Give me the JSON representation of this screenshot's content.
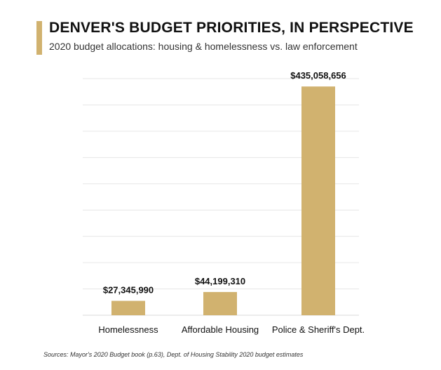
{
  "colors": {
    "accent": "#d1b26f",
    "bar": "#d1b26f",
    "grid": "#e6e6e6"
  },
  "header": {
    "title": "DENVER'S BUDGET PRIORITIES, IN PERSPECTIVE",
    "subtitle": "2020 budget allocations: housing & homelessness vs. law enforcement"
  },
  "footer": {
    "source": "Sources: Mayor's 2020 Budget book (p.63), Dept. of Housing Stability 2020 budget estimates"
  },
  "chart_data": {
    "type": "bar",
    "title": "DENVER'S BUDGET PRIORITIES, IN PERSPECTIVE",
    "subtitle": "2020 budget allocations: housing & homelessness vs. law enforcement",
    "xlabel": "",
    "ylabel": "",
    "categories": [
      "Homelessness",
      "Affordable Housing",
      "Police & Sheriff's Dept."
    ],
    "values": [
      27345990,
      44199310,
      435058656
    ],
    "value_labels": [
      "$27,345,990",
      "$44,199,310",
      "$435,058,656"
    ],
    "ylim": [
      0,
      450000000
    ],
    "grid": true,
    "legend": "none"
  }
}
